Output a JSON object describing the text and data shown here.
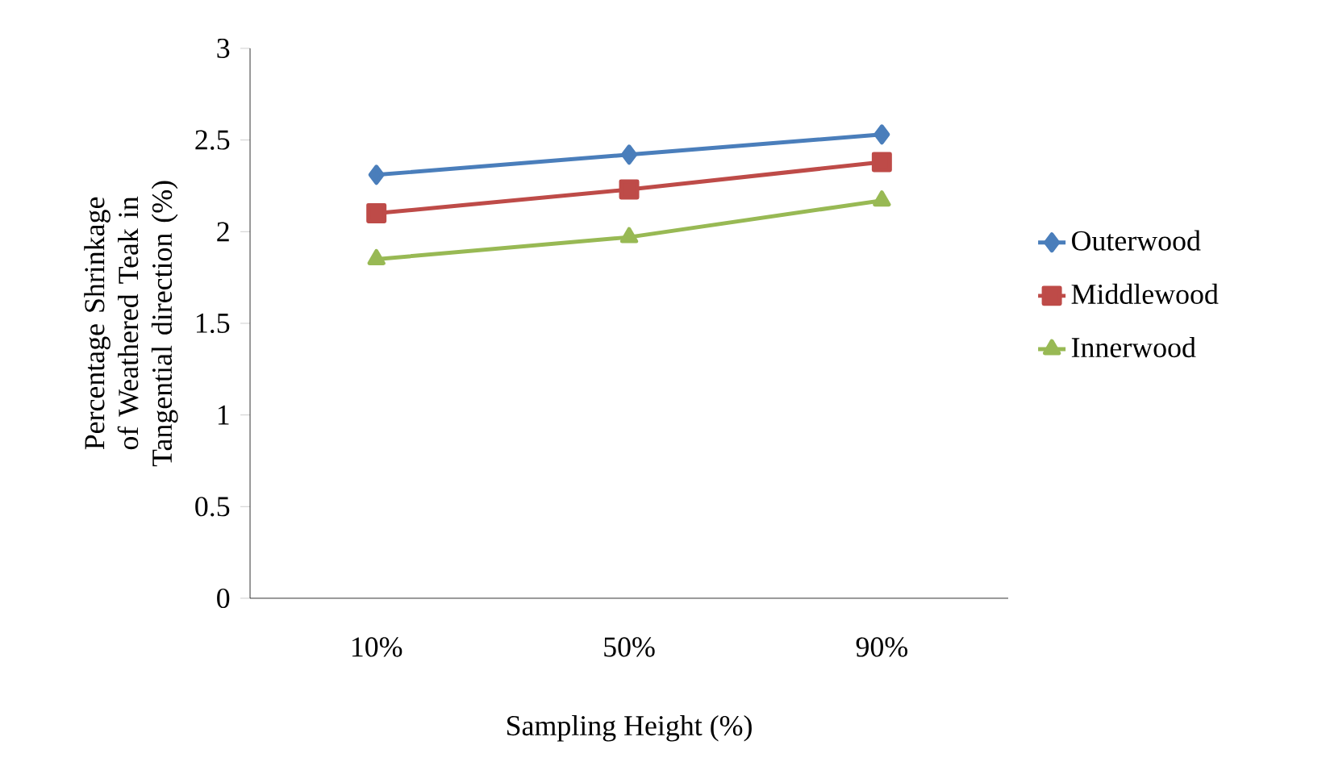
{
  "chart_data": {
    "type": "line",
    "xlabel": "Sampling Height (%)",
    "ylabel": "Percentage Shrinkage of Weathered Teak in Tangential direction (%)",
    "categories": [
      "10%",
      "50%",
      "90%"
    ],
    "ylim": [
      0,
      3
    ],
    "yticks": [
      0,
      0.5,
      1,
      1.5,
      2,
      2.5,
      3
    ],
    "grid": false,
    "legend": "right",
    "line_style": "solid",
    "series": [
      {
        "name": "Outerwood",
        "color": "#4a7ebb",
        "marker": "diamond",
        "values": [
          2.31,
          2.42,
          2.53
        ]
      },
      {
        "name": "Middlewood",
        "color": "#be4b48",
        "marker": "square",
        "values": [
          2.1,
          2.23,
          2.38
        ]
      },
      {
        "name": "Innerwood",
        "color": "#98b954",
        "marker": "triangle",
        "values": [
          1.85,
          1.97,
          2.17
        ]
      }
    ]
  }
}
